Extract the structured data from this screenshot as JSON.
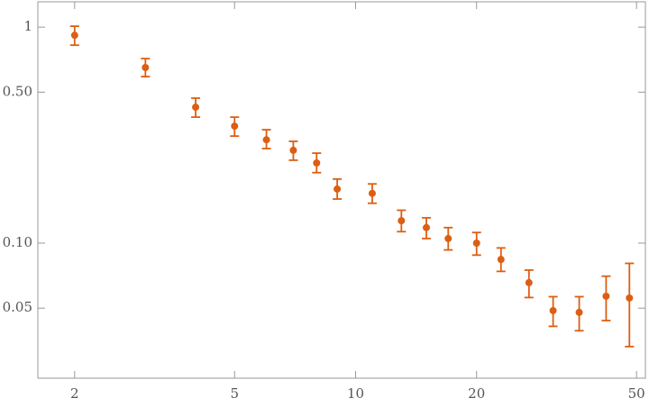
{
  "chart_data": {
    "type": "scatter",
    "x": [
      2,
      3,
      4,
      5,
      6,
      7,
      8,
      9,
      11,
      13,
      15,
      17,
      20,
      23,
      27,
      31,
      36,
      42,
      48
    ],
    "values": [
      0.917,
      0.65,
      0.426,
      0.348,
      0.301,
      0.269,
      0.235,
      0.178,
      0.17,
      0.127,
      0.118,
      0.105,
      0.1,
      0.084,
      0.0656,
      0.0487,
      0.0478,
      0.0568,
      0.0557
    ],
    "lower": [
      0.825,
      0.59,
      0.383,
      0.313,
      0.274,
      0.242,
      0.212,
      0.16,
      0.153,
      0.113,
      0.105,
      0.093,
      0.088,
      0.074,
      0.056,
      0.0412,
      0.0393,
      0.0438,
      0.0332
    ],
    "upper": [
      1.01,
      0.715,
      0.469,
      0.383,
      0.335,
      0.296,
      0.261,
      0.198,
      0.188,
      0.142,
      0.131,
      0.118,
      0.112,
      0.095,
      0.075,
      0.0565,
      0.0565,
      0.0703,
      0.0806
    ],
    "color": "#dd5e12",
    "xlim": [
      1.62,
      52.6
    ],
    "ylim": [
      0.0237,
      1.31
    ],
    "xticks": [
      2,
      5,
      10,
      20,
      50
    ],
    "yticks": [
      1,
      {
        "value": 0.5,
        "label": "0.50"
      },
      {
        "value": 0.1,
        "label": "0.10"
      },
      0.05
    ],
    "xscale": "log",
    "yscale": "log"
  }
}
